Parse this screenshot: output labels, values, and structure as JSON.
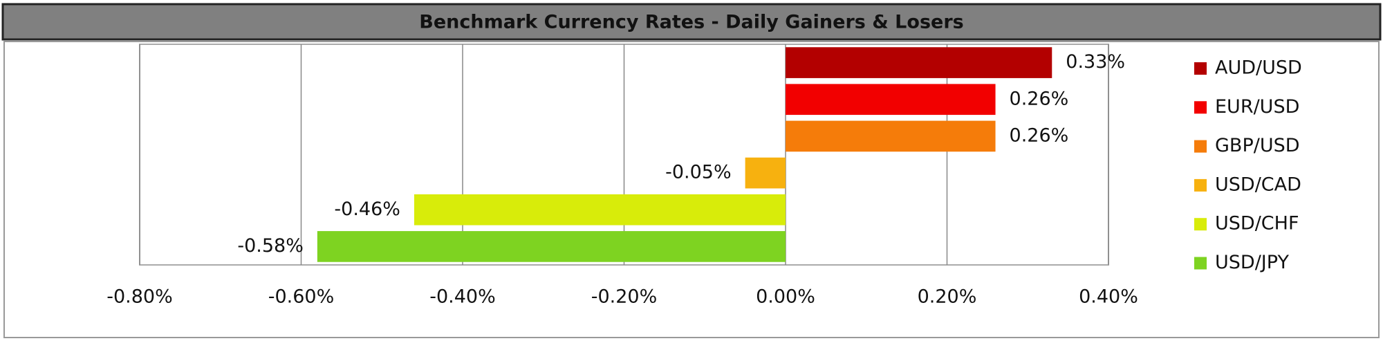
{
  "chart_data": {
    "type": "bar",
    "orientation": "horizontal",
    "title": "Benchmark Currency Rates - Daily Gainers & Losers",
    "categories": [
      "AUD/USD",
      "EUR/USD",
      "GBP/USD",
      "USD/CAD",
      "USD/CHF",
      "USD/JPY"
    ],
    "values": [
      0.33,
      0.26,
      0.26,
      -0.05,
      -0.46,
      -0.58
    ],
    "value_labels": [
      "0.33%",
      "0.26%",
      "0.26%",
      "-0.05%",
      "-0.46%",
      "-0.58%"
    ],
    "colors": [
      "#b30000",
      "#f20000",
      "#f57c0a",
      "#f7b10f",
      "#d8ec0a",
      "#7ed321"
    ],
    "xlim": [
      -0.8,
      0.4
    ],
    "xticks": [
      {
        "value": -0.8,
        "label": "-0.80%"
      },
      {
        "value": -0.6,
        "label": "-0.60%"
      },
      {
        "value": -0.4,
        "label": "-0.40%"
      },
      {
        "value": -0.2,
        "label": "-0.20%"
      },
      {
        "value": 0,
        "label": "0.00%"
      },
      {
        "value": 0.2,
        "label": "0.20%"
      },
      {
        "value": 0.4,
        "label": "0.40%"
      }
    ],
    "grid": true,
    "legend": "right"
  }
}
